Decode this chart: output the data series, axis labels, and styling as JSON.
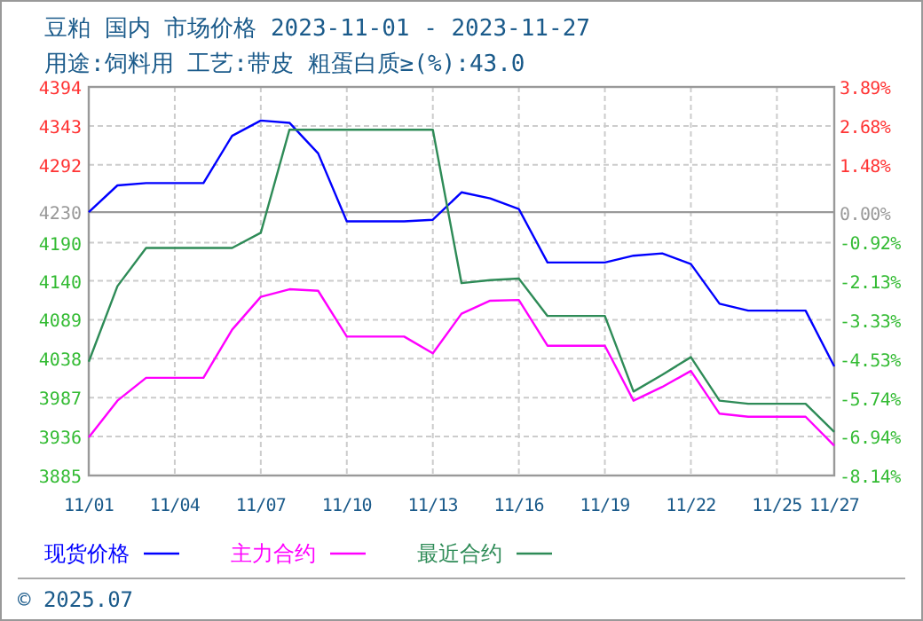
{
  "chart_data": {
    "type": "line",
    "title": "豆粕 国内 市场价格 2023-11-01 - 2023-11-27",
    "subtitle": "用途:饲料用 工艺:带皮 粗蛋白质≥(%):43.0",
    "x": [
      "2023-11-01",
      "2023-11-02",
      "2023-11-03",
      "2023-11-04",
      "2023-11-05",
      "2023-11-06",
      "2023-11-07",
      "2023-11-08",
      "2023-11-09",
      "2023-11-10",
      "2023-11-11",
      "2023-11-12",
      "2023-11-13",
      "2023-11-14",
      "2023-11-15",
      "2023-11-16",
      "2023-11-17",
      "2023-11-18",
      "2023-11-19",
      "2023-11-20",
      "2023-11-21",
      "2023-11-22",
      "2023-11-23",
      "2023-11-24",
      "2023-11-25",
      "2023-11-26",
      "2023-11-27"
    ],
    "series": [
      {
        "name": "现货价格",
        "color": "#0000ff",
        "values": [
          4230,
          4265,
          4268,
          4268,
          4268,
          4330,
          4350,
          4347,
          4307,
          4218,
          4218,
          4218,
          4220,
          4256,
          4248,
          4234,
          4164,
          4164,
          4164,
          4173,
          4176,
          4162,
          4110,
          4101,
          4101,
          4101,
          4028
        ]
      },
      {
        "name": "主力合约",
        "color": "#ff00ff",
        "values": [
          3935,
          3983,
          4013,
          4013,
          4013,
          4076,
          4119,
          4129,
          4127,
          4067,
          4067,
          4067,
          4045,
          4097,
          4114,
          4115,
          4055,
          4055,
          4055,
          3983,
          4001,
          4022,
          3966,
          3962,
          3962,
          3962,
          3924
        ]
      },
      {
        "name": "最近合约",
        "color": "#2e8b57",
        "values": [
          4034,
          4133,
          4183,
          4183,
          4183,
          4183,
          4203,
          4338,
          4338,
          4338,
          4338,
          4338,
          4338,
          4137,
          4141,
          4143,
          4094,
          4094,
          4094,
          3995,
          4017,
          4040,
          3983,
          3979,
          3979,
          3979,
          3942
        ]
      }
    ],
    "xlim": [
      "2023-11-01",
      "2023-11-27"
    ],
    "xticks": [
      {
        "value": "2023-11-01",
        "label": "11/01"
      },
      {
        "value": "2023-11-04",
        "label": "11/04"
      },
      {
        "value": "2023-11-07",
        "label": "11/07"
      },
      {
        "value": "2023-11-10",
        "label": "11/10"
      },
      {
        "value": "2023-11-13",
        "label": "11/13"
      },
      {
        "value": "2023-11-16",
        "label": "11/16"
      },
      {
        "value": "2023-11-19",
        "label": "11/19"
      },
      {
        "value": "2023-11-22",
        "label": "11/22"
      },
      {
        "value": "2023-11-25",
        "label": "11/25"
      },
      {
        "value": "2023-11-27",
        "label": "11/27"
      }
    ],
    "ylim": [
      3885,
      4394
    ],
    "yticks": [
      3885,
      3936,
      3987,
      4038,
      4089,
      4140,
      4190,
      4230,
      4292,
      4343,
      4394
    ],
    "y2lim": [
      -8.14,
      3.89
    ],
    "y2ticks": [
      {
        "value": -8.14,
        "label": "-8.14%"
      },
      {
        "value": -6.94,
        "label": "-6.94%"
      },
      {
        "value": -5.74,
        "label": "-5.74%"
      },
      {
        "value": -4.53,
        "label": "-4.53%"
      },
      {
        "value": -3.33,
        "label": "-3.33%"
      },
      {
        "value": -2.13,
        "label": "-2.13%"
      },
      {
        "value": -0.92,
        "label": "-0.92%"
      },
      {
        "value": 0,
        "label": "0.00%"
      },
      {
        "value": 1.48,
        "label": "1.48%"
      },
      {
        "value": 2.68,
        "label": "2.68%"
      },
      {
        "value": 3.89,
        "label": "3.89%"
      }
    ],
    "ref_lines": [
      {
        "axis": "y",
        "value": 4230,
        "color": "#999999",
        "line_style": "solid"
      }
    ],
    "grid": true,
    "legend": "bottom",
    "line_style": "solid",
    "marker": "none",
    "annotations": [
      "© 2025.07"
    ]
  }
}
